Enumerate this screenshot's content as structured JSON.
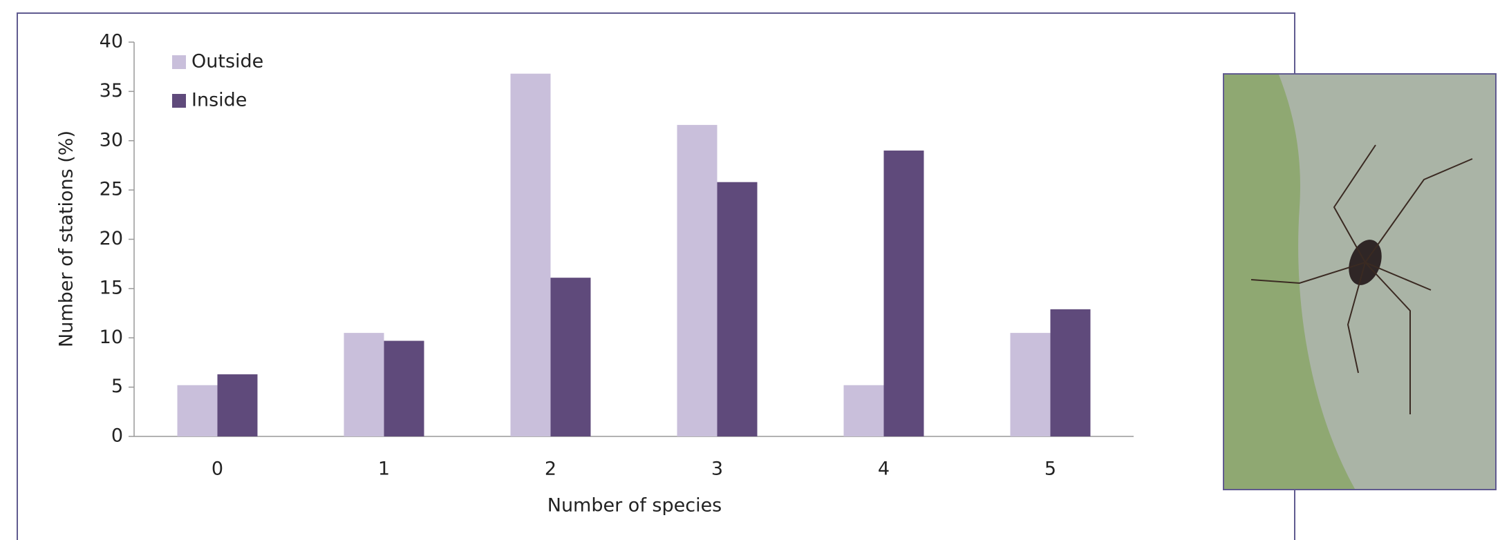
{
  "chart_data": {
    "type": "bar",
    "x_label": "Number of species",
    "y_label": "Number of stations (%)",
    "categories": [
      "0",
      "1",
      "2",
      "3",
      "4",
      "5"
    ],
    "series": [
      {
        "name": "Outside",
        "color": "#c9bfdb",
        "values": [
          5.2,
          10.5,
          36.8,
          31.6,
          5.2,
          10.5
        ]
      },
      {
        "name": "Inside",
        "color": "#5f4a7b",
        "values": [
          6.3,
          9.7,
          16.1,
          25.8,
          29.0,
          12.9
        ]
      }
    ],
    "ylim": [
      0,
      40
    ],
    "yticks": [
      0,
      5,
      10,
      15,
      20,
      25,
      30,
      35,
      40
    ],
    "grid": false,
    "legend": "top-left"
  }
}
